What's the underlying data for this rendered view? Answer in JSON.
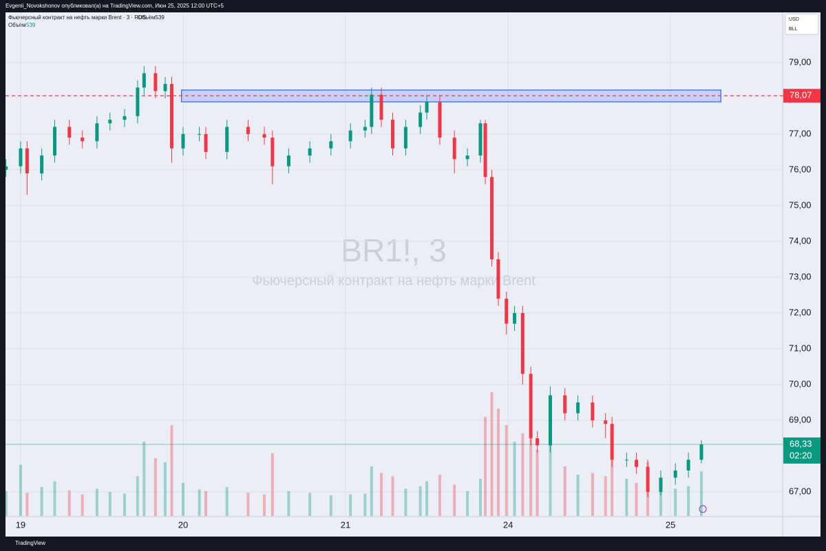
{
  "published": "Evgenii_Novokshonov опубликовал(а) на TradingView.com, Июн 25, 2025 12:00 UTC+5",
  "footer": "TradingView",
  "chart_data": {
    "type": "candlestick",
    "legend_title": "Фьючерсный контракт на нефть марки Brent · 3 · RUS",
    "legend_volume": "Объём539",
    "volume_name": "Объём",
    "volume_value": "539",
    "watermark_symbol": "BR1!, 3",
    "watermark_name": "Фьючерсный контракт на нефть марки Brent",
    "currency": "USD",
    "unit": "BLL",
    "up_color": "#089981",
    "down_color": "#f23645",
    "x": [
      -0.09,
      0,
      0.04,
      0.13,
      0.21,
      0.3,
      0.38,
      0.47,
      0.55,
      0.64,
      0.72,
      0.76,
      0.83,
      0.89,
      0.93,
      1.0,
      1.1,
      1.14,
      1.27,
      1.4,
      1.5,
      1.55,
      1.65,
      1.78,
      1.91,
      2.03,
      2.12,
      2.16,
      2.22,
      2.29,
      2.37,
      2.46,
      2.5,
      2.58,
      2.67,
      2.75,
      2.83,
      2.86,
      2.9,
      2.94,
      2.99,
      3.04,
      3.09,
      3.14,
      3.18,
      3.26,
      3.35,
      3.43,
      3.52,
      3.6,
      3.64,
      3.73,
      3.79,
      3.86,
      3.94,
      4.03,
      4.11,
      4.19
    ],
    "open": [
      76.0,
      76.1,
      76.6,
      75.9,
      76.4,
      77.2,
      76.9,
      76.8,
      77.3,
      77.4,
      77.5,
      78.3,
      78.7,
      78.2,
      78.4,
      76.6,
      77.0,
      77.0,
      76.5,
      77.2,
      77.0,
      76.9,
      76.1,
      76.4,
      76.6,
      76.8,
      77.1,
      77.2,
      78.1,
      77.4,
      76.6,
      77.2,
      77.6,
      77.9,
      76.9,
      76.3,
      76.4,
      77.3,
      75.8,
      73.5,
      72.4,
      71.7,
      72.0,
      70.3,
      68.5,
      68.3,
      69.7,
      69.2,
      69.5,
      69.0,
      68.9,
      67.9,
      67.9,
      67.7,
      67.0,
      67.4,
      67.6,
      67.9
    ],
    "high": [
      76.3,
      76.8,
      76.8,
      76.6,
      77.4,
      77.4,
      77.1,
      77.5,
      77.6,
      77.7,
      78.5,
      78.9,
      78.9,
      78.6,
      78.6,
      77.2,
      77.2,
      77.2,
      77.4,
      77.4,
      77.2,
      77.1,
      76.6,
      76.8,
      77.0,
      77.3,
      77.4,
      78.3,
      78.3,
      77.6,
      77.4,
      77.8,
      78.1,
      78.1,
      77.1,
      76.6,
      77.4,
      77.4,
      76.0,
      73.7,
      72.6,
      72.2,
      72.2,
      70.5,
      68.7,
      69.95,
      69.9,
      69.7,
      69.7,
      69.2,
      69.1,
      68.1,
      68.1,
      67.9,
      67.6,
      67.8,
      68.1,
      68.45
    ],
    "low": [
      75.8,
      75.9,
      75.3,
      75.7,
      76.2,
      76.7,
      76.6,
      76.6,
      77.1,
      77.2,
      77.3,
      78.1,
      78.0,
      78.0,
      76.2,
      76.4,
      76.8,
      76.3,
      76.3,
      76.8,
      76.7,
      75.6,
      75.9,
      76.2,
      76.4,
      76.6,
      76.9,
      77.0,
      77.2,
      76.4,
      76.4,
      77.0,
      77.4,
      76.7,
      75.9,
      76.1,
      76.2,
      75.6,
      73.3,
      72.2,
      71.4,
      71.5,
      70.0,
      68.3,
      68.1,
      68.1,
      69.0,
      69.0,
      68.8,
      68.5,
      67.7,
      67.7,
      67.5,
      66.85,
      66.9,
      67.2,
      67.4,
      67.8
    ],
    "close": [
      76.1,
      76.6,
      75.9,
      76.4,
      77.2,
      76.9,
      76.8,
      77.3,
      77.4,
      77.5,
      78.3,
      78.7,
      78.2,
      78.4,
      76.6,
      77.0,
      77.0,
      76.5,
      77.2,
      77.0,
      76.9,
      76.1,
      76.4,
      76.6,
      76.8,
      77.1,
      77.2,
      78.1,
      77.4,
      76.6,
      77.2,
      77.6,
      77.9,
      76.9,
      76.3,
      76.4,
      77.3,
      75.8,
      73.5,
      72.4,
      71.7,
      72.0,
      70.3,
      68.5,
      68.3,
      69.7,
      69.2,
      69.5,
      69.0,
      68.9,
      67.9,
      67.9,
      67.7,
      67.0,
      67.4,
      67.6,
      67.9,
      68.33
    ],
    "volume": [
      300,
      620,
      280,
      350,
      420,
      310,
      260,
      330,
      290,
      270,
      480,
      900,
      700,
      650,
      1100,
      400,
      320,
      300,
      350,
      280,
      260,
      760,
      300,
      280,
      250,
      260,
      270,
      600,
      520,
      480,
      330,
      360,
      420,
      500,
      380,
      300,
      450,
      1200,
      1500,
      1300,
      1100,
      900,
      1000,
      1400,
      800,
      900,
      600,
      500,
      520,
      480,
      700,
      450,
      400,
      650,
      380,
      330,
      360,
      539
    ],
    "xlim": [
      -0.093,
      4.69
    ],
    "ylim": [
      66.33,
      80.4
    ],
    "xticks": [
      {
        "value": 0,
        "label": "19"
      },
      {
        "value": 1,
        "label": "20"
      },
      {
        "value": 2,
        "label": "21"
      },
      {
        "value": 3,
        "label": "24"
      },
      {
        "value": 4,
        "label": "25"
      }
    ],
    "yticks": [
      {
        "value": 67,
        "label": "67,00"
      },
      {
        "value": 69,
        "label": "69,00"
      },
      {
        "value": 70,
        "label": "70,00"
      },
      {
        "value": 71,
        "label": "71,00"
      },
      {
        "value": 72,
        "label": "72,00"
      },
      {
        "value": 73,
        "label": "73,00"
      },
      {
        "value": 74,
        "label": "74,00"
      },
      {
        "value": 75,
        "label": "75,00"
      },
      {
        "value": 76,
        "label": "76,00"
      },
      {
        "value": 77,
        "label": "77,00"
      },
      {
        "value": 79,
        "label": "79,00"
      }
    ],
    "level": {
      "value": 78.07,
      "label": "78,07",
      "color": "#f23645"
    },
    "last_price": {
      "value": 68.33,
      "label": "68,33",
      "countdown": "02:20",
      "color": "#089981"
    },
    "zone": {
      "x": [
        0.99,
        4.31
      ],
      "y": [
        77.9,
        78.23
      ],
      "color": "#2962ff"
    },
    "grid": true
  }
}
